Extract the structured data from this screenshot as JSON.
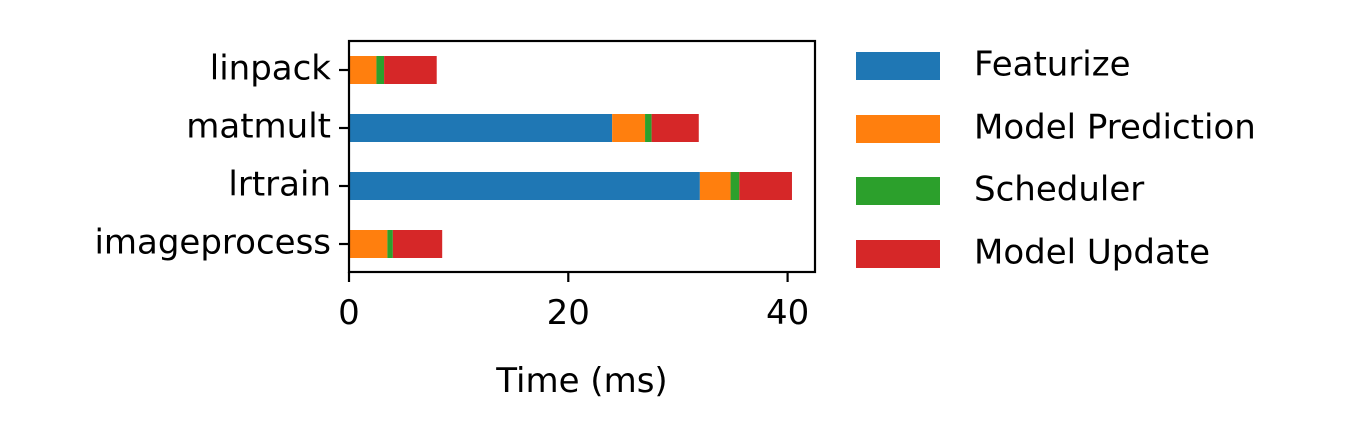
{
  "chart_data": {
    "type": "bar",
    "orientation": "horizontal",
    "stacked": true,
    "categories": [
      "linpack",
      "matmult",
      "lrtrain",
      "imageprocess"
    ],
    "series": [
      {
        "name": "Featurize",
        "color": "#1f77b4",
        "values": [
          0.0,
          24.0,
          32.0,
          0.0
        ]
      },
      {
        "name": "Model Prediction",
        "color": "#ff7f0e",
        "values": [
          2.5,
          3.0,
          2.8,
          3.5
        ]
      },
      {
        "name": "Scheduler",
        "color": "#2ca02c",
        "values": [
          0.7,
          0.6,
          0.8,
          0.5
        ]
      },
      {
        "name": "Model Update",
        "color": "#d62728",
        "values": [
          4.8,
          4.3,
          4.8,
          4.5
        ]
      }
    ],
    "xlabel": "Time (ms)",
    "ylabel": "",
    "title": "",
    "xlim": [
      0,
      42.5
    ],
    "xticks": [
      0,
      20,
      40
    ],
    "xtick_labels": [
      "0",
      "20",
      "40"
    ],
    "grid": false,
    "legend": {
      "placement": "outside-right",
      "frame": false
    }
  }
}
